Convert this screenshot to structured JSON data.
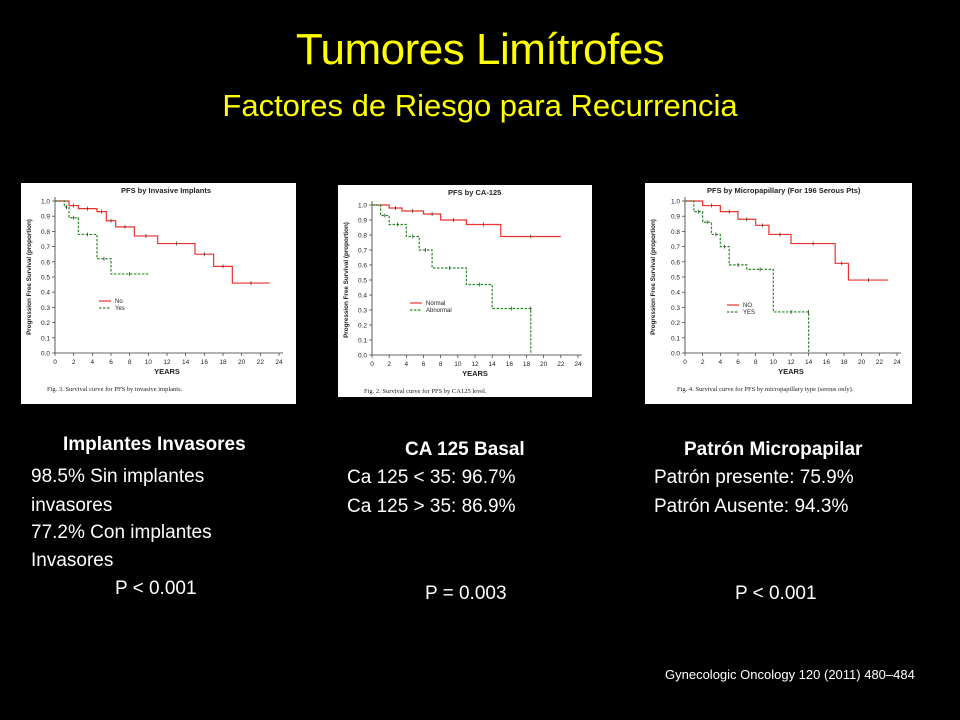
{
  "title": "Tumores Limítrofes",
  "subtitle": "Factores  de Riesgo para Recurrencia",
  "colors": {
    "title": "#ffff00",
    "series_red": "#e8322e",
    "series_green": "#2a8a2a"
  },
  "citation": "Gynecologic Oncology 120 (2011) 480–484",
  "panels": [
    {
      "heading": "Implantes Invasores",
      "lines": [
        "98.5% Sin implantes",
        "invasores",
        "77.2% Con implantes",
        "Invasores"
      ],
      "pvalue": "P < 0.001"
    },
    {
      "heading": "CA 125 Basal",
      "lines": [
        "Ca 125 < 35:  96.7%",
        "Ca 125 > 35:  86.9%"
      ],
      "pvalue": "P = 0.003"
    },
    {
      "heading": "Patrón Micropapilar",
      "lines": [
        "Patrón presente: 75.9%",
        "Patrón Ausente:  94.3%"
      ],
      "pvalue": "P < 0.001"
    }
  ],
  "chart_data": [
    {
      "type": "line",
      "title": "PFS by Invasive Implants",
      "xlabel": "YEARS",
      "ylabel": "Progression Free Survival (proportion)",
      "xlim": [
        0,
        24
      ],
      "ylim": [
        0,
        1
      ],
      "xticks": [
        0,
        2,
        4,
        6,
        8,
        10,
        12,
        14,
        16,
        18,
        20,
        22,
        24
      ],
      "yticks": [
        0.0,
        0.1,
        0.2,
        0.3,
        0.4,
        0.5,
        0.6,
        0.7,
        0.8,
        0.9,
        1.0
      ],
      "caption": "Fig. 3. Survival curve for PFS by invasive implants.",
      "series": [
        {
          "name": "No",
          "color": "#e8322e",
          "x": [
            0,
            1.5,
            2.5,
            4.5,
            5.5,
            6.5,
            8.5,
            11,
            15,
            17,
            19,
            23
          ],
          "y": [
            1.0,
            0.97,
            0.95,
            0.93,
            0.87,
            0.83,
            0.77,
            0.72,
            0.65,
            0.57,
            0.46,
            0.46
          ]
        },
        {
          "name": "Yes",
          "color": "#2a8a2a",
          "x": [
            0,
            1,
            1.5,
            2.5,
            4.5,
            6,
            10
          ],
          "y": [
            1.0,
            0.96,
            0.89,
            0.78,
            0.62,
            0.52,
            0.52
          ]
        }
      ]
    },
    {
      "type": "line",
      "title": "PFS by CA-125",
      "xlabel": "YEARS",
      "ylabel": "Progression Free Survival (proportion)",
      "xlim": [
        0,
        24
      ],
      "ylim": [
        0,
        1
      ],
      "xticks": [
        0,
        2,
        4,
        6,
        8,
        10,
        12,
        14,
        16,
        18,
        20,
        22,
        24
      ],
      "yticks": [
        0.0,
        0.1,
        0.2,
        0.3,
        0.4,
        0.5,
        0.6,
        0.7,
        0.8,
        0.9,
        1.0
      ],
      "caption": "Fig. 2. Survival curve for PFS by CA125 level.",
      "series": [
        {
          "name": "Normal",
          "color": "#e8322e",
          "x": [
            0,
            2,
            3.5,
            6,
            8,
            11,
            15,
            22
          ],
          "y": [
            1.0,
            0.98,
            0.96,
            0.94,
            0.9,
            0.87,
            0.79,
            0.79
          ]
        },
        {
          "name": "Abnormal",
          "color": "#2a8a2a",
          "x": [
            0,
            1,
            2,
            4,
            5.5,
            7,
            11,
            14,
            18.5,
            18.5
          ],
          "y": [
            1.0,
            0.93,
            0.87,
            0.79,
            0.7,
            0.58,
            0.47,
            0.31,
            0.31,
            0.0
          ]
        }
      ]
    },
    {
      "type": "line",
      "title": "PFS by Micropapillary (For 196 Serous Pts)",
      "xlabel": "YEARS",
      "ylabel": "Progression Free Survival (proportion)",
      "xlim": [
        0,
        24
      ],
      "ylim": [
        0,
        1
      ],
      "xticks": [
        0,
        2,
        4,
        6,
        8,
        10,
        12,
        14,
        16,
        18,
        20,
        22,
        24
      ],
      "yticks": [
        0.0,
        0.1,
        0.2,
        0.3,
        0.4,
        0.5,
        0.6,
        0.7,
        0.8,
        0.9,
        1.0
      ],
      "caption": "Fig. 4. Survival curve for PFS by micropapillary type (serous only).",
      "series": [
        {
          "name": "NO",
          "color": "#e8322e",
          "x": [
            0,
            2,
            4,
            6,
            8,
            9.5,
            12,
            17,
            18.5,
            23
          ],
          "y": [
            1.0,
            0.97,
            0.93,
            0.88,
            0.84,
            0.78,
            0.72,
            0.59,
            0.48,
            0.48
          ]
        },
        {
          "name": "YES",
          "color": "#2a8a2a",
          "x": [
            0,
            1,
            2,
            3,
            4,
            5,
            7,
            10,
            14,
            14
          ],
          "y": [
            1.0,
            0.93,
            0.86,
            0.78,
            0.7,
            0.58,
            0.55,
            0.27,
            0.27,
            0.0
          ]
        }
      ]
    }
  ]
}
